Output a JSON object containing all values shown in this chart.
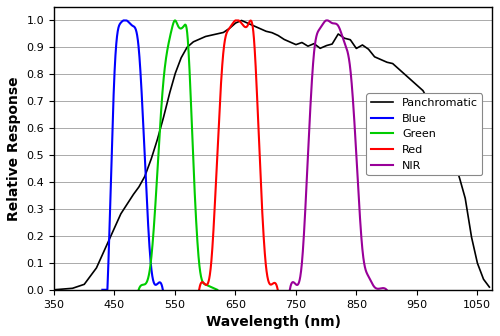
{
  "title": "",
  "xlabel": "Wavelength (nm)",
  "ylabel": "Relative Response",
  "xlim": [
    350,
    1075
  ],
  "ylim": [
    0,
    1.05
  ],
  "xticks": [
    350,
    450,
    550,
    650,
    750,
    850,
    950,
    1050
  ],
  "yticks": [
    0,
    0.1,
    0.2,
    0.3,
    0.4,
    0.5,
    0.6,
    0.7,
    0.8,
    0.9,
    1.0
  ],
  "background_color": "#ffffff",
  "legend_labels": [
    "Panchromatic",
    "Blue",
    "Green",
    "Red",
    "NIR"
  ],
  "legend_colors": [
    "#000000",
    "#0000ff",
    "#00cc00",
    "#ff0000",
    "#990099"
  ],
  "pan_x": [
    350,
    380,
    400,
    420,
    440,
    460,
    480,
    490,
    500,
    510,
    520,
    530,
    540,
    550,
    560,
    570,
    580,
    590,
    600,
    610,
    620,
    630,
    640,
    650,
    660,
    670,
    680,
    690,
    700,
    710,
    720,
    730,
    740,
    750,
    760,
    770,
    780,
    790,
    800,
    810,
    820,
    830,
    840,
    850,
    860,
    870,
    880,
    890,
    900,
    910,
    920,
    930,
    940,
    950,
    960,
    970,
    980,
    990,
    1000,
    1010,
    1020,
    1030,
    1040,
    1050,
    1060,
    1070
  ],
  "pan_y": [
    0.0,
    0.005,
    0.02,
    0.08,
    0.18,
    0.28,
    0.35,
    0.38,
    0.42,
    0.48,
    0.55,
    0.63,
    0.72,
    0.8,
    0.86,
    0.9,
    0.92,
    0.93,
    0.94,
    0.945,
    0.95,
    0.955,
    0.97,
    0.99,
    1.0,
    0.99,
    0.98,
    0.97,
    0.96,
    0.955,
    0.945,
    0.93,
    0.92,
    0.915,
    0.9,
    0.895,
    0.91,
    0.91,
    0.92,
    0.93,
    0.935,
    0.93,
    0.92,
    0.915,
    0.89,
    0.88,
    0.865,
    0.855,
    0.845,
    0.84,
    0.82,
    0.8,
    0.78,
    0.76,
    0.74,
    0.7,
    0.65,
    0.6,
    0.55,
    0.49,
    0.42,
    0.34,
    0.2,
    0.1,
    0.04,
    0.01
  ],
  "blue_x": [
    430,
    440,
    450,
    460,
    470,
    480,
    490,
    500,
    510,
    520,
    530
  ],
  "blue_y": [
    0.0,
    0.1,
    0.8,
    0.99,
    1.0,
    0.98,
    0.9,
    0.5,
    0.1,
    0.02,
    0.0
  ],
  "green_x": [
    490,
    500,
    510,
    520,
    530,
    540,
    545,
    550,
    555,
    560,
    565,
    570,
    580,
    590,
    600,
    610,
    615,
    620
  ],
  "green_y": [
    0.0,
    0.02,
    0.1,
    0.4,
    0.75,
    0.92,
    0.97,
    1.0,
    0.98,
    0.97,
    0.98,
    0.96,
    0.5,
    0.1,
    0.02,
    0.01,
    0.005,
    0.0
  ],
  "red_x": [
    590,
    600,
    610,
    620,
    630,
    640,
    650,
    660,
    670,
    680,
    690,
    700,
    710,
    720
  ],
  "red_y": [
    0.0,
    0.02,
    0.1,
    0.5,
    0.88,
    0.97,
    1.0,
    0.99,
    0.98,
    0.95,
    0.5,
    0.1,
    0.02,
    0.0
  ],
  "nir_x": [
    740,
    750,
    760,
    770,
    780,
    790,
    800,
    810,
    820,
    830,
    840,
    850,
    860,
    870,
    880,
    890,
    900
  ],
  "nir_y": [
    0.0,
    0.02,
    0.1,
    0.5,
    0.88,
    0.97,
    1.0,
    0.99,
    0.98,
    0.92,
    0.82,
    0.5,
    0.15,
    0.05,
    0.01,
    0.005,
    0.0
  ]
}
